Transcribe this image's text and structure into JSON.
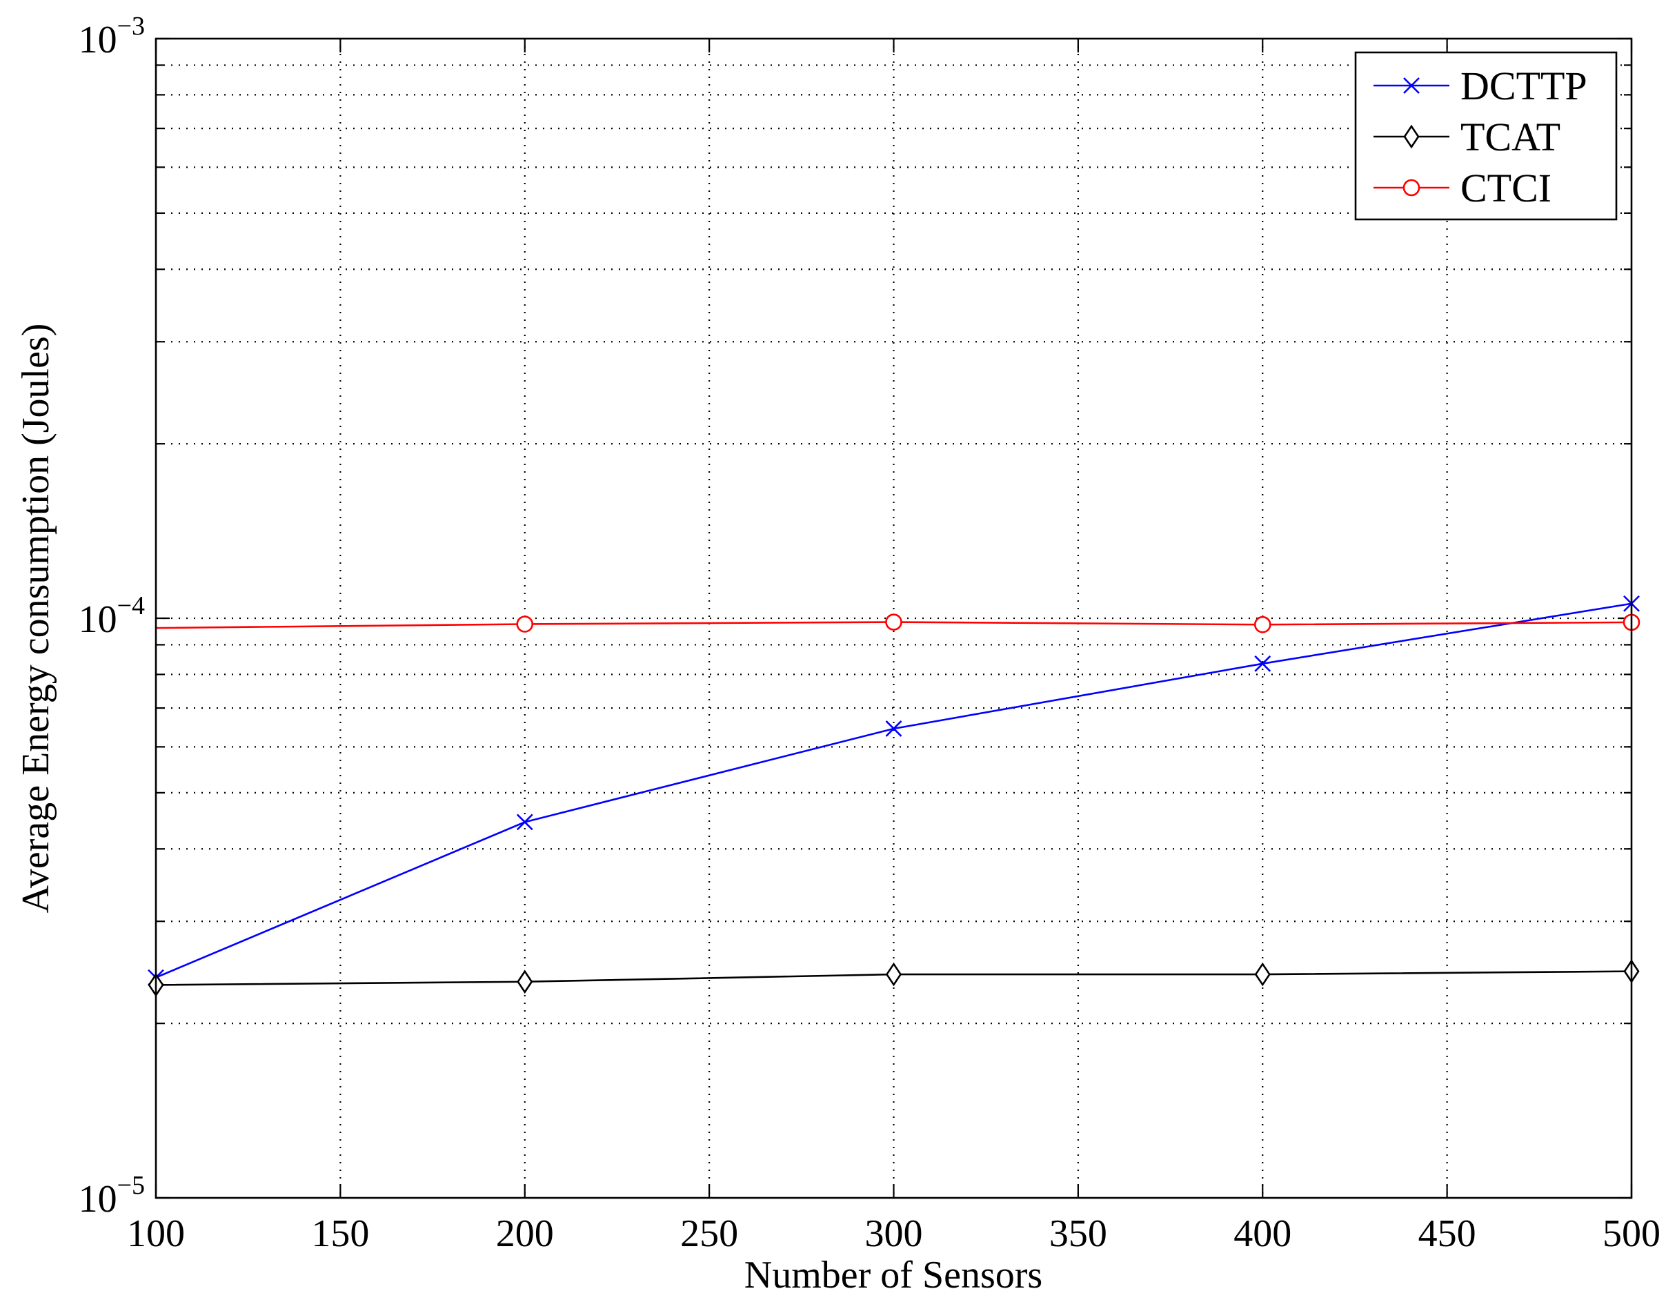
{
  "chart_data": {
    "type": "line",
    "title": "",
    "xlabel": "Number of Sensors",
    "ylabel": "Average Energy consumption (Joules)",
    "x_scale": "linear",
    "y_scale": "log",
    "xlim": [
      100,
      500
    ],
    "ylim": [
      1e-05,
      0.001
    ],
    "x_ticks": [
      100,
      150,
      200,
      250,
      300,
      350,
      400,
      450,
      500
    ],
    "y_tick_labels": [
      {
        "value": 1e-05,
        "base": "10",
        "exponent": "−5"
      },
      {
        "value": 0.0001,
        "base": "10",
        "exponent": "−4"
      },
      {
        "value": 0.001,
        "base": "10",
        "exponent": "−3"
      }
    ],
    "grid": true,
    "legend_position": "top-right",
    "x": [
      100,
      200,
      300,
      400,
      500
    ],
    "series": [
      {
        "name": "DCTTP",
        "color": "#0000ff",
        "marker": "x",
        "x": [
          100,
          200,
          300,
          400,
          500
        ],
        "values": [
          2.4e-05,
          4.45e-05,
          6.45e-05,
          8.35e-05,
          0.000106
        ]
      },
      {
        "name": "TCAT",
        "color": "#000000",
        "marker": "diamond",
        "x": [
          100,
          200,
          300,
          400,
          500
        ],
        "values": [
          2.33e-05,
          2.36e-05,
          2.43e-05,
          2.43e-05,
          2.46e-05
        ]
      },
      {
        "name": "CTCI",
        "color": "#ff0000",
        "marker": "circle",
        "x": [
          100,
          200,
          300,
          400,
          500
        ],
        "values": [
          9.62e-05,
          9.77e-05,
          9.85e-05,
          9.75e-05,
          9.84e-05
        ],
        "marker_x": [
          200,
          300,
          400,
          500
        ]
      }
    ]
  }
}
